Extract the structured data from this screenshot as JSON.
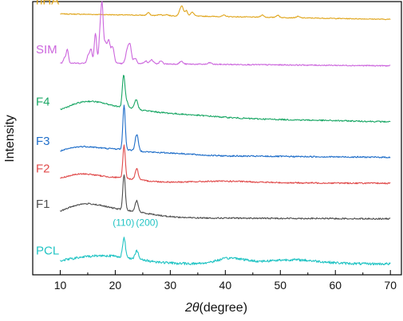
{
  "chart_data": {
    "type": "line",
    "title": "",
    "xlabel_symbol": "2θ",
    "xlabel_unit": "(degree)",
    "ylabel": "Intensity",
    "xlim": [
      5,
      72
    ],
    "xticks": [
      10,
      20,
      30,
      40,
      50,
      60,
      70
    ],
    "yticks_shown": false,
    "grid": false,
    "legend": "none",
    "series": [
      {
        "name": "nHA",
        "color": "#E0A51B",
        "baseline": 0.955,
        "slope": -0.02,
        "noise": 0.0015,
        "amorph": [],
        "peaks": [
          [
            26,
            0.01,
            0.25
          ],
          [
            28.1,
            0.004,
            0.3
          ],
          [
            29.3,
            0.004,
            0.3
          ],
          [
            31.8,
            0.022,
            0.25
          ],
          [
            32.2,
            0.028,
            0.22
          ],
          [
            32.9,
            0.02,
            0.25
          ],
          [
            34.0,
            0.014,
            0.3
          ],
          [
            39.8,
            0.005,
            0.3
          ],
          [
            46.7,
            0.008,
            0.3
          ],
          [
            49.5,
            0.008,
            0.3
          ],
          [
            53.2,
            0.005,
            0.3
          ]
        ]
      },
      {
        "name": "SIM",
        "color": "#CC66DD",
        "baseline": 0.775,
        "slope": -0.01,
        "noise": 0.002,
        "amorph": [],
        "peaks": [
          [
            10.8,
            0.02,
            0.22
          ],
          [
            11.3,
            0.05,
            0.2
          ],
          [
            15.1,
            0.03,
            0.25
          ],
          [
            15.6,
            0.05,
            0.2
          ],
          [
            16.4,
            0.11,
            0.22
          ],
          [
            17.2,
            0.09,
            0.2
          ],
          [
            17.6,
            0.21,
            0.22
          ],
          [
            18.2,
            0.07,
            0.25
          ],
          [
            18.8,
            0.08,
            0.25
          ],
          [
            19.5,
            0.06,
            0.3
          ],
          [
            22.2,
            0.05,
            0.3
          ],
          [
            22.7,
            0.06,
            0.25
          ],
          [
            23.6,
            0.02,
            0.3
          ],
          [
            25.5,
            0.01,
            0.3
          ],
          [
            26.6,
            0.015,
            0.3
          ],
          [
            28.3,
            0.01,
            0.3
          ],
          [
            32.0,
            0.01,
            0.3
          ],
          [
            37.2,
            0.006,
            0.3
          ]
        ]
      },
      {
        "name": "F4",
        "color": "#1AA765",
        "baseline": 0.585,
        "slope": -0.025,
        "noise": 0.0025,
        "amorph": [
          [
            14.5,
            0.04,
            3.5
          ],
          [
            21,
            0.025,
            5
          ],
          [
            32,
            0.01,
            6
          ]
        ],
        "peaks": [
          [
            21.5,
            0.11,
            0.22
          ],
          [
            21.95,
            0.03,
            0.3
          ],
          [
            23.8,
            0.035,
            0.3
          ]
        ]
      },
      {
        "name": "F3",
        "color": "#1F6EC9",
        "baseline": 0.44,
        "slope": -0.01,
        "noise": 0.0025,
        "amorph": [
          [
            13.5,
            0.025,
            3
          ],
          [
            20.5,
            0.02,
            4
          ],
          [
            30,
            0.008,
            4
          ]
        ],
        "peaks": [
          [
            21.6,
            0.16,
            0.22
          ],
          [
            23.9,
            0.06,
            0.28
          ]
        ]
      },
      {
        "name": "F2",
        "color": "#E04A4A",
        "baseline": 0.34,
        "slope": -0.005,
        "noise": 0.0025,
        "amorph": [
          [
            13.5,
            0.025,
            3
          ],
          [
            20,
            0.015,
            4
          ],
          [
            40,
            0.005,
            5
          ]
        ],
        "peaks": [
          [
            21.6,
            0.12,
            0.22
          ],
          [
            23.9,
            0.04,
            0.28
          ]
        ]
      },
      {
        "name": "F1",
        "color": "#4D4D4D",
        "baseline": 0.21,
        "slope": -0.005,
        "noise": 0.0025,
        "amorph": [
          [
            14,
            0.04,
            3.5
          ],
          [
            21,
            0.025,
            5
          ]
        ],
        "peaks": [
          [
            21.6,
            0.13,
            0.22
          ],
          [
            23.9,
            0.04,
            0.28
          ]
        ]
      },
      {
        "name": "PCL",
        "color": "#22C4C4",
        "baseline": 0.04,
        "slope": 0.0,
        "noise": 0.0045,
        "amorph": [
          [
            15.5,
            0.02,
            5
          ],
          [
            21,
            0.015,
            5
          ],
          [
            41,
            0.02,
            2.5
          ],
          [
            52,
            0.015,
            5
          ]
        ],
        "peaks": [
          [
            21.6,
            0.07,
            0.25
          ],
          [
            23.9,
            0.03,
            0.3
          ]
        ]
      }
    ],
    "annotations": [
      {
        "text": "(110)",
        "x": 21.5,
        "series": "PCL",
        "color": "#22C4C4"
      },
      {
        "text": "(200)",
        "x": 25.8,
        "series": "PCL",
        "color": "#22C4C4"
      }
    ]
  }
}
